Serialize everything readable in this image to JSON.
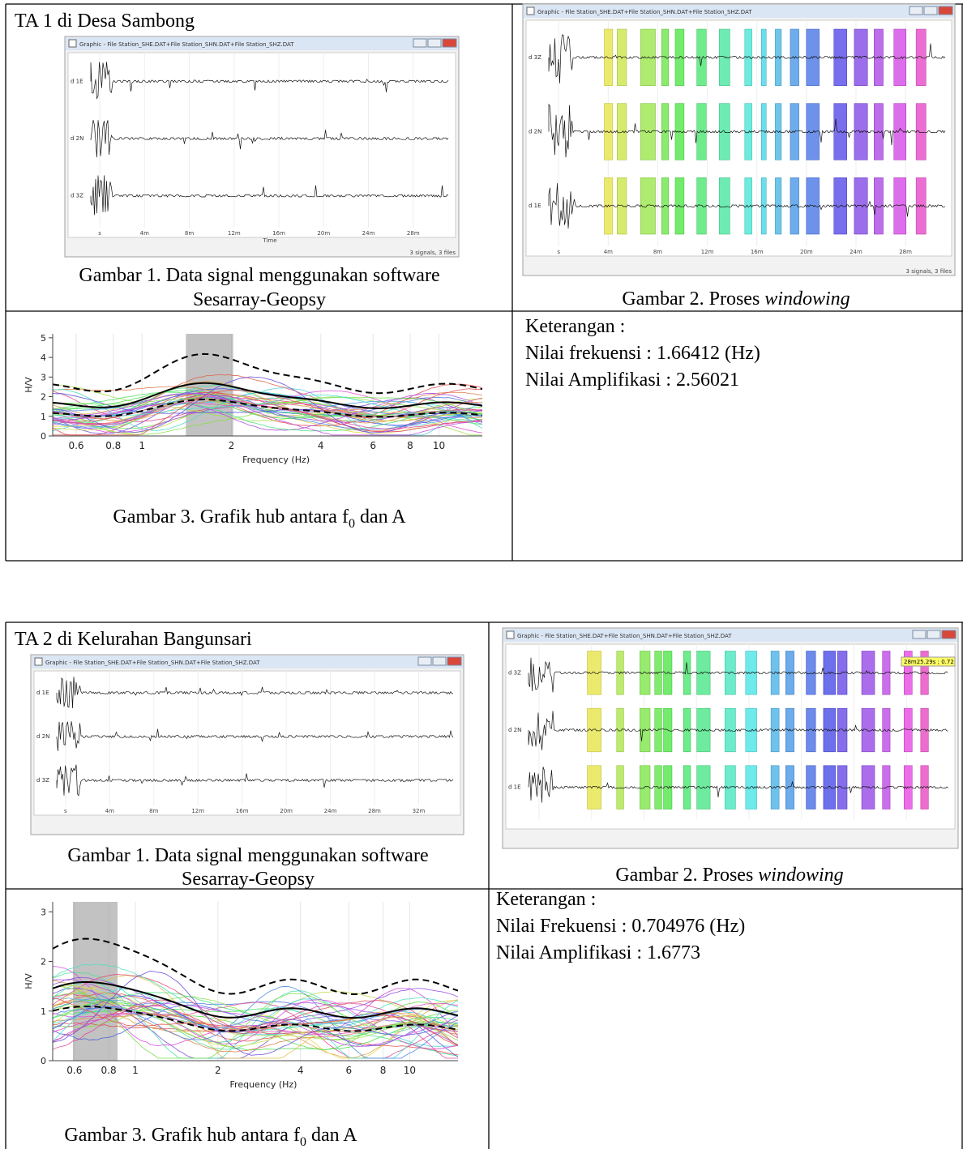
{
  "sections": [
    {
      "title": "TA 1 di Desa Sambong",
      "signal": {
        "window_title": "Graphic - File Station_SHE.DAT+File Station_SHN.DAT+File Station_SHZ.DAT",
        "traces": [
          "d 1E",
          "d 2N",
          "d 3Z"
        ],
        "time_ticks": [
          "s",
          "4m",
          "8m",
          "12m",
          "16m",
          "20m",
          "24m",
          "28m"
        ],
        "x_label": "Time",
        "status": "3 signals, 3 files",
        "caption_lines": [
          "Gambar 1. Data signal menggunakan software",
          "Sesarray-Geopsy"
        ]
      },
      "windowing": {
        "window_title": "Graphic - File Station_SHE.DAT+File Station_SHN.DAT+File Station_SHZ.DAT",
        "traces": [
          "d 3Z",
          "d 2N",
          "d 1E"
        ],
        "time_ticks": [
          "s",
          "4m",
          "8m",
          "12m",
          "16m",
          "20m",
          "24m",
          "28m"
        ],
        "status": "3 signals, 3 files",
        "caption_parts": [
          "Gambar 2. Proses ",
          "windowing"
        ]
      },
      "hv": {
        "y_label": "H/V",
        "x_label": "Frequency (Hz)",
        "xlim": [
          0.5,
          14
        ],
        "ylim": [
          0,
          5.2
        ],
        "yticks": [
          0,
          1,
          2,
          3,
          4,
          5
        ],
        "xticks": [
          0.6,
          0.8,
          1,
          2,
          4,
          6,
          8,
          10
        ],
        "caption_parts": [
          "Gambar 3. Grafik hub antara f",
          "0",
          " dan A"
        ]
      },
      "notes": [
        "Keterangan :",
        "Nilai frekuensi : 1.66412 (Hz)",
        "Nilai Amplifikasi : 2.56021"
      ]
    },
    {
      "title": "TA 2 di Kelurahan Bangunsari",
      "signal": {
        "window_title": "Graphic - File Station_SHE.DAT+File Station_SHN.DAT+File Station_SHZ.DAT",
        "traces": [
          "d 1E",
          "d 2N",
          "d 3Z"
        ],
        "time_ticks": [
          "s",
          "4m",
          "8m",
          "12m",
          "16m",
          "20m",
          "24m",
          "28m",
          "32m"
        ],
        "caption_lines": [
          "Gambar 1. Data signal menggunakan software",
          "Sesarray-Geopsy"
        ]
      },
      "windowing": {
        "window_title": "Graphic - File Station_SHE.DAT+File Station_SHN.DAT+File Station_SHZ.DAT",
        "traces": [
          "d 3Z",
          "d 2N",
          "d 1E"
        ],
        "tooltip": "28m25.29s ; 0.72",
        "caption_parts": [
          "Gambar 2. Proses ",
          "windowing"
        ]
      },
      "hv": {
        "y_label": "H/V",
        "x_label": "Frequency (Hz)",
        "xlim": [
          0.5,
          15
        ],
        "ylim": [
          0,
          3.2
        ],
        "yticks": [
          0,
          1,
          2,
          3
        ],
        "xticks": [
          0.6,
          0.8,
          1,
          2,
          4,
          6,
          8,
          10
        ],
        "caption_parts": [
          "Gambar 3. Grafik hub antara f",
          "0",
          " dan A"
        ]
      },
      "notes": [
        "Keterangan :",
        "Nilai Frekuensi : 0.704976 (Hz)",
        "Nilai Amplifikasi : 1.6773"
      ]
    }
  ]
}
